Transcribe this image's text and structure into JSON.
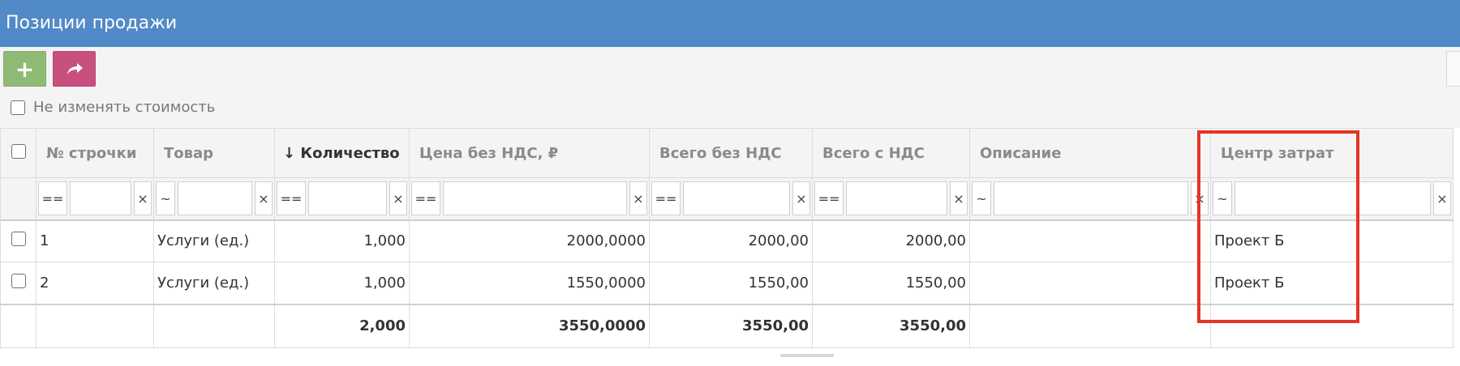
{
  "panel": {
    "title": "Позиции продажи"
  },
  "toolbar": {
    "add_icon": "plus-icon",
    "share_icon": "share-arrow-icon",
    "no_change_cost_label": "Не изменять стоимость"
  },
  "colors": {
    "header_bar": "#5289c7",
    "add_button": "#8fba74",
    "share_button": "#c8507f",
    "highlight": "#e53424"
  },
  "table": {
    "columns": {
      "line_no": "№ строчки",
      "product": "Товар",
      "sort_arrow": "↓",
      "quantity": "Количество",
      "price_excl_vat": "Цена без НДС, ₽",
      "total_excl_vat": "Всего без НДС",
      "total_incl_vat": "Всего с НДС",
      "description": "Описание",
      "cost_center": "Центр затрат"
    },
    "filters": {
      "line_no": "==",
      "product": "~",
      "quantity": "==",
      "price_excl_vat": "==",
      "total_excl_vat": "==",
      "total_incl_vat": "==",
      "description": "~",
      "cost_center": "~",
      "clear": "×"
    },
    "rows": [
      {
        "line_no": "1",
        "product": "Услуги (ед.)",
        "quantity": "1,000",
        "price_excl_vat": "2000,0000",
        "total_excl_vat": "2000,00",
        "total_incl_vat": "2000,00",
        "description": "",
        "cost_center": "Проект Б"
      },
      {
        "line_no": "2",
        "product": "Услуги (ед.)",
        "quantity": "1,000",
        "price_excl_vat": "1550,0000",
        "total_excl_vat": "1550,00",
        "total_incl_vat": "1550,00",
        "description": "",
        "cost_center": "Проект Б"
      }
    ],
    "totals": {
      "quantity": "2,000",
      "price_excl_vat": "3550,0000",
      "total_excl_vat": "3550,00",
      "total_incl_vat": "3550,00"
    }
  }
}
